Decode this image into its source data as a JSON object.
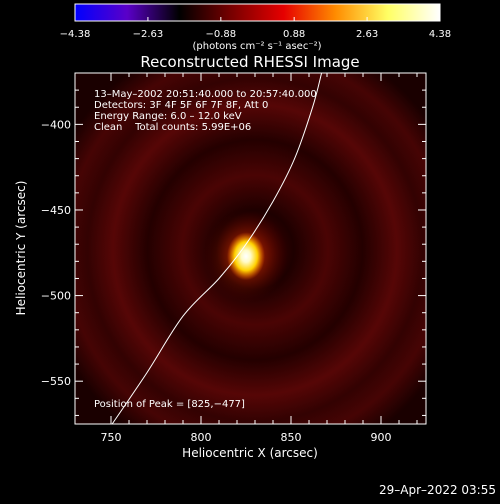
{
  "chart_data": {
    "type": "heatmap",
    "title": "Reconstructed RHESSI Image",
    "xlabel": "Heliocentric X (arcsec)",
    "ylabel": "Heliocentric Y (arcsec)",
    "xlim": [
      730,
      925
    ],
    "ylim": [
      -575,
      -370
    ],
    "x_ticks": [
      750,
      800,
      850,
      900
    ],
    "y_ticks": [
      -550,
      -500,
      -450,
      -400
    ],
    "x_tick_labels": [
      "750",
      "800",
      "850",
      "900"
    ],
    "y_tick_labels": [
      "−550",
      "−500",
      "−450",
      "−400"
    ],
    "colorbar": {
      "min": -4.38,
      "max": 4.38,
      "tick_values": [
        -4.38,
        -2.63,
        -0.88,
        0.88,
        2.63,
        4.38
      ],
      "tick_labels": [
        "−4.38",
        "−2.63",
        "−0.88",
        "0.88",
        "2.63",
        "4.38"
      ],
      "unit_label": "(photons cm⁻² s⁻¹ asec⁻²)",
      "colors": [
        "#0000ff",
        "#5a00c8",
        "#000000",
        "#780000",
        "#e60000",
        "#ff8c00",
        "#ffff64",
        "#ffffff"
      ]
    },
    "source": {
      "x": 825,
      "y": -477,
      "peak_value": 4.38
    },
    "limb_curve": {
      "color": "#ffffff",
      "points": [
        [
          750,
          -576
        ],
        [
          770,
          -545
        ],
        [
          790,
          -512
        ],
        [
          810,
          -490
        ],
        [
          825,
          -470
        ],
        [
          840,
          -445
        ],
        [
          852,
          -420
        ],
        [
          862,
          -390
        ],
        [
          867,
          -370
        ]
      ]
    },
    "annotations": [
      "13–May–2002 20:51:40.000 to 20:57:40.000",
      "Detectors: 3F 4F 5F 6F 7F 8F, Att 0",
      "Energy Range: 6.0 – 12.0 keV",
      "Clean    Total counts: 5.99E+06"
    ],
    "peak_annotation": "Position of Peak = [825,−477]"
  },
  "footer": {
    "timestamp": "29–Apr–2022 03:55"
  }
}
